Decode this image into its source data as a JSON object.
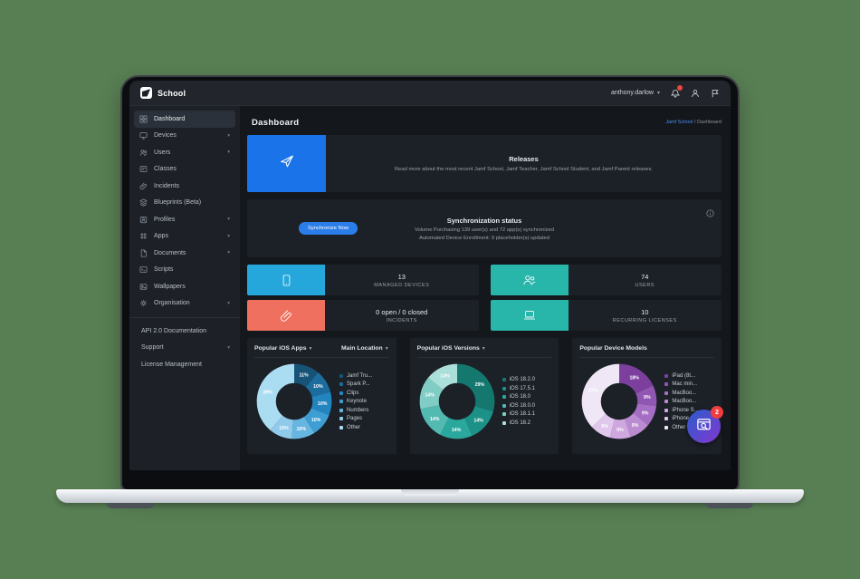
{
  "topbar": {
    "logo_text": "School",
    "user": "anthony.darlow"
  },
  "sidebar": {
    "items": [
      {
        "label": "Dashboard",
        "icon": "dashboard-icon",
        "active": true,
        "expandable": false
      },
      {
        "label": "Devices",
        "icon": "devices-icon",
        "active": false,
        "expandable": true
      },
      {
        "label": "Users",
        "icon": "users-icon",
        "active": false,
        "expandable": true
      },
      {
        "label": "Classes",
        "icon": "classes-icon",
        "active": false,
        "expandable": false
      },
      {
        "label": "Incidents",
        "icon": "incidents-icon",
        "active": false,
        "expandable": false
      },
      {
        "label": "Blueprints (Beta)",
        "icon": "blueprints-icon",
        "active": false,
        "expandable": false
      },
      {
        "label": "Profiles",
        "icon": "profiles-icon",
        "active": false,
        "expandable": true
      },
      {
        "label": "Apps",
        "icon": "apps-icon",
        "active": false,
        "expandable": true
      },
      {
        "label": "Documents",
        "icon": "documents-icon",
        "active": false,
        "expandable": true
      },
      {
        "label": "Scripts",
        "icon": "scripts-icon",
        "active": false,
        "expandable": false
      },
      {
        "label": "Wallpapers",
        "icon": "wallpapers-icon",
        "active": false,
        "expandable": false
      },
      {
        "label": "Organisation",
        "icon": "organisation-icon",
        "active": false,
        "expandable": true
      }
    ],
    "footer_items": [
      {
        "label": "API 2.0 Documentation",
        "expandable": false
      },
      {
        "label": "Support",
        "expandable": true
      },
      {
        "label": "License Management",
        "expandable": false
      }
    ]
  },
  "header": {
    "title": "Dashboard",
    "breadcrumb": {
      "link": "Jamf School",
      "separator": "/",
      "current": "Dashboard"
    }
  },
  "releases": {
    "title": "Releases",
    "description": "Read more about the most recent Jamf School, Jamf Teacher, Jamf School Student, and Jamf Parent releases.",
    "accent_color": "#1a73e8"
  },
  "sync": {
    "title": "Synchronization status",
    "line1": "Volume Purchasing 139 user(s) and 72 app(s) synchronized",
    "line2": "Automated Device Enrollment: 9 placeholder(s) updated",
    "button_label": "Synchronize Now"
  },
  "stats": {
    "items": [
      {
        "value": "13",
        "label": "MANAGED DEVICES",
        "color": "#25a7db",
        "icon": "tablet-icon"
      },
      {
        "value": "74",
        "label": "USERS",
        "color": "#28b5aa",
        "icon": "users-group-icon"
      },
      {
        "value": "0 open / 0 closed",
        "label": "INCIDENTS",
        "color": "#f0705f",
        "icon": "paperclip-icon"
      },
      {
        "value": "10",
        "label": "RECURRING LICENSES",
        "color": "#28b5aa",
        "icon": "laptop-icon"
      }
    ]
  },
  "chart_data": [
    {
      "type": "donut",
      "title": "Popular iOS Apps",
      "title_dropdown": true,
      "secondary_label": "Main Location",
      "labels": [
        "Jamf Tru...",
        "Spark P...",
        "Clips",
        "Keynote",
        "Numbers",
        "Pages",
        "Other"
      ],
      "values": [
        11,
        10,
        10,
        10,
        10,
        10,
        39
      ],
      "unit": "%",
      "colors": [
        "#175377",
        "#1c6d9e",
        "#2385c0",
        "#3e9ed4",
        "#67b6e1",
        "#8fcaea",
        "#aadcf2"
      ]
    },
    {
      "type": "donut",
      "title": "Popular iOS Versions",
      "title_dropdown": true,
      "secondary_label": "",
      "labels": [
        "iOS 18.2.0",
        "iOS 17.5.1",
        "iOS 18.0",
        "iOS 18.0.0",
        "iOS 18.1.1",
        "iOS 18.2"
      ],
      "values": [
        29,
        14,
        14,
        14,
        14,
        14
      ],
      "unit": "%",
      "colors": [
        "#14786f",
        "#1c9187",
        "#2ba89d",
        "#53bab1",
        "#80cdc5",
        "#abdfd9"
      ]
    },
    {
      "type": "donut",
      "title": "Popular Device Models",
      "title_dropdown": false,
      "secondary_label": "",
      "labels": [
        "iPad (8t...",
        "Mac min...",
        "MacBoo...",
        "MacBoo...",
        "iPhone S...",
        "iPhone ...",
        "Other"
      ],
      "values": [
        18,
        9,
        9,
        9,
        9,
        9,
        37
      ],
      "unit": "%",
      "colors": [
        "#7c3f9e",
        "#9156b2",
        "#a56dc3",
        "#ba8bd1",
        "#cea8df",
        "#e1c7ec",
        "#f0e7f6"
      ]
    }
  ],
  "floating_button": {
    "badge": "2"
  }
}
